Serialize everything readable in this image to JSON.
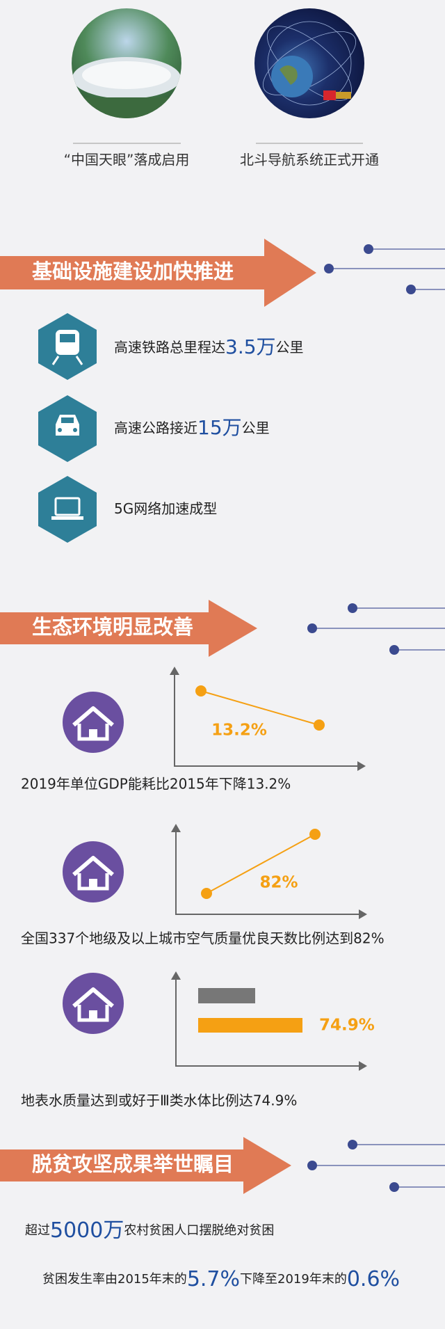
{
  "header": {
    "items": [
      {
        "caption": "“中国天眼”落成启用"
      },
      {
        "caption": "北斗导航系统正式开通"
      }
    ]
  },
  "sections": [
    {
      "title": "基础设施建设加快推进",
      "items": [
        {
          "parts": [
            "高速铁路总里程达",
            "3.5万",
            "公里"
          ]
        },
        {
          "parts": [
            "高速公路接近",
            "15万",
            "公里"
          ]
        },
        {
          "parts": [
            "5G网络加速成型"
          ]
        }
      ]
    },
    {
      "title": "生态环境明显改善",
      "items": [
        {
          "label": "13.2%",
          "caption": "2019年单位GDP能耗比2015年下降13.2%"
        },
        {
          "label": "82%",
          "caption": "全国337个地级及以上城市空气质量优良天数比例达到82%"
        },
        {
          "label": "74.9%",
          "caption": "地表水质量达到或好于Ⅲ类水体比例达74.9%"
        }
      ]
    },
    {
      "title": "脱贫攻坚成果举世瞩目",
      "items": [
        {
          "parts": [
            "超过",
            "5000万",
            "农村贫困人口摆脱绝对贫困"
          ]
        },
        {
          "parts": [
            "贫困发生率由2015年末的",
            "5.7%",
            "下降至2019年末的",
            "0.6%"
          ]
        }
      ]
    }
  ]
}
